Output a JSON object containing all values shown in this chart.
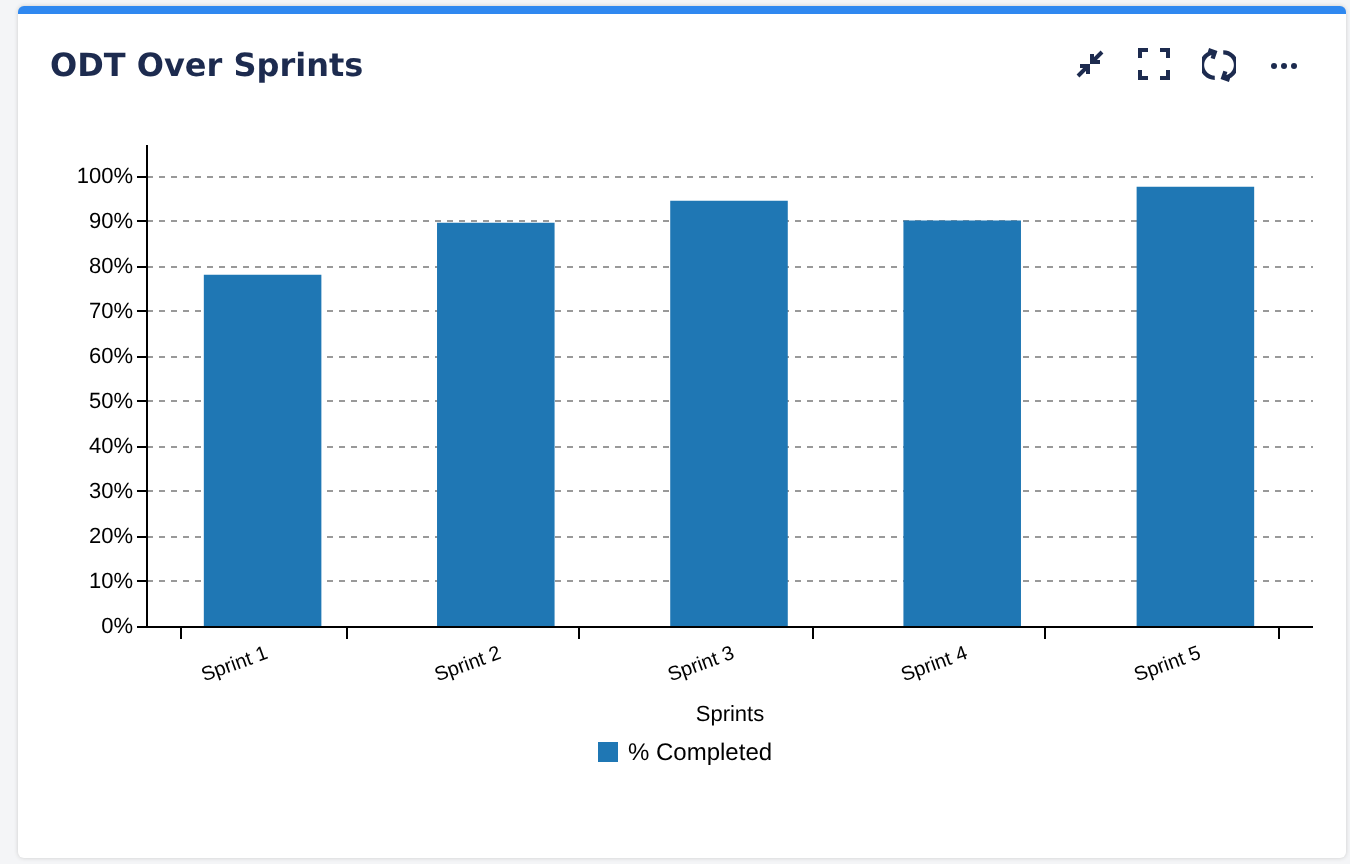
{
  "chart_data": {
    "type": "bar",
    "title": "ODT Over Sprints",
    "xlabel": "Sprints",
    "categories": [
      "Sprint 1",
      "Sprint 2",
      "Sprint 3",
      "Sprint 4",
      "Sprint 5"
    ],
    "series": [
      {
        "name": "% Completed",
        "color": "#1f77b4",
        "values": [
          78,
          89.5,
          94.4,
          90,
          97.5
        ]
      }
    ],
    "ylim": [
      0,
      107
    ],
    "yticks": [
      {
        "value": 0,
        "label": "0%"
      },
      {
        "value": 10,
        "label": "10%"
      },
      {
        "value": 20,
        "label": "20%"
      },
      {
        "value": 30,
        "label": "30%"
      },
      {
        "value": 40,
        "label": "40%"
      },
      {
        "value": 50,
        "label": "50%"
      },
      {
        "value": 60,
        "label": "60%"
      },
      {
        "value": 70,
        "label": "70%"
      },
      {
        "value": 80,
        "label": "80%"
      },
      {
        "value": 90,
        "label": "90%"
      },
      {
        "value": 100,
        "label": "100%"
      }
    ],
    "grid": "y",
    "legend": "bottom"
  }
}
